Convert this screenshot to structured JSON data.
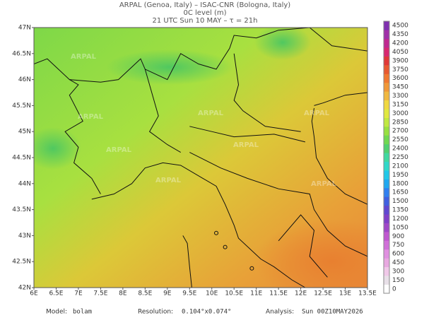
{
  "header": {
    "line1": "ARPAL (Genoa, Italy)  –  ISAC-CNR (Bologna, Italy)",
    "line2": "0C level (m)",
    "line3": "21 UTC Sun 10 MAY  –  τ = 21h"
  },
  "map": {
    "lon_labels": [
      "6E",
      "6.5E",
      "7E",
      "7.5E",
      "8E",
      "8.5E",
      "9E",
      "9.5E",
      "10E",
      "10.5E",
      "11E",
      "11.5E",
      "12E",
      "12.5E",
      "13E",
      "13.5E"
    ],
    "lat_labels": [
      "47N",
      "46.5N",
      "46N",
      "45.5N",
      "45N",
      "44.5N",
      "44N",
      "43.5N",
      "43N",
      "42.5N",
      "42N"
    ],
    "watermark": "ARPAL"
  },
  "colorbar": {
    "levels": [
      0,
      150,
      300,
      450,
      600,
      750,
      900,
      1050,
      1200,
      1350,
      1500,
      1650,
      1800,
      1950,
      2100,
      2250,
      2400,
      2550,
      2700,
      2850,
      3000,
      3150,
      3300,
      3450,
      3600,
      3750,
      3900,
      4050,
      4200,
      4350,
      4500
    ],
    "colors": [
      "#ffffff",
      "#e8e0e8",
      "#f0c8e8",
      "#e8a8e0",
      "#e090e0",
      "#d070d8",
      "#c058d0",
      "#a048c8",
      "#8040c8",
      "#6048d0",
      "#4060e0",
      "#3080f0",
      "#20a8f0",
      "#20c8e8",
      "#30d8c8",
      "#40d8a0",
      "#50d070",
      "#70d850",
      "#98e040",
      "#c0e840",
      "#e0e840",
      "#f0d840",
      "#f0b840",
      "#f09838",
      "#f07830",
      "#e85830",
      "#e03838",
      "#d82870",
      "#c02890",
      "#a030a8",
      "#8030b0"
    ]
  },
  "footer": {
    "model_label": "Model:",
    "model": "bolam",
    "resolution_label": "Resolution:",
    "resolution": "0.104°x0.074°",
    "analysis_label": "Analysis:",
    "analysis": "Sun 00Z10MAY2026"
  }
}
